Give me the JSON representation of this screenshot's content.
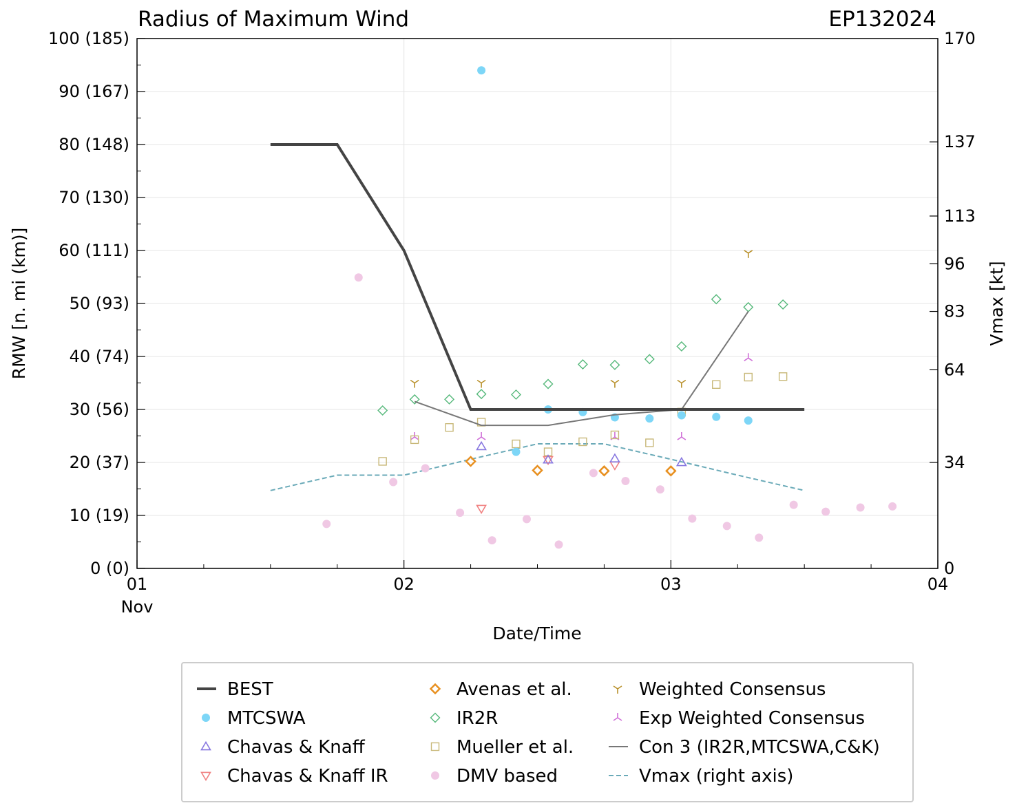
{
  "chart_data": {
    "type": "scatter",
    "title": "Radius of Maximum Wind",
    "storm_id": "EP132024",
    "xlabel": "Date/Time",
    "ylabel": "RMW [n. mi (km)]",
    "y2label": "Vmax [kt]",
    "xlim": [
      0,
      3
    ],
    "ylim": [
      0,
      100
    ],
    "x_ticks": [
      {
        "x": 0,
        "label": "01",
        "sublabel": "Nov"
      },
      {
        "x": 1,
        "label": "02",
        "sublabel": ""
      },
      {
        "x": 2,
        "label": "03",
        "sublabel": ""
      },
      {
        "x": 3,
        "label": "04",
        "sublabel": ""
      }
    ],
    "y_ticks": [
      {
        "y": 0,
        "label": "0 (0)"
      },
      {
        "y": 10,
        "label": "10 (19)"
      },
      {
        "y": 20,
        "label": "20 (37)"
      },
      {
        "y": 30,
        "label": "30 (56)"
      },
      {
        "y": 40,
        "label": "40 (74)"
      },
      {
        "y": 50,
        "label": "50 (93)"
      },
      {
        "y": 60,
        "label": "60 (111)"
      },
      {
        "y": 70,
        "label": "70 (130)"
      },
      {
        "y": 80,
        "label": "80 (148)"
      },
      {
        "y": 90,
        "label": "90 (167)"
      },
      {
        "y": 100,
        "label": "100 (185)"
      }
    ],
    "y2_ticks": [
      {
        "y": 0,
        "label": "0"
      },
      {
        "y": 20,
        "label": "34"
      },
      {
        "y": 37.5,
        "label": "64"
      },
      {
        "y": 48.5,
        "label": "83"
      },
      {
        "y": 57.5,
        "label": "96"
      },
      {
        "y": 66.5,
        "label": "113"
      },
      {
        "y": 80.5,
        "label": "137"
      },
      {
        "y": 100,
        "label": "170"
      }
    ],
    "grid": true,
    "legend_position": "bottom",
    "series": [
      {
        "name": "BEST",
        "kind": "line",
        "color": "#444444",
        "points": [
          [
            0.5,
            80
          ],
          [
            0.75,
            80
          ],
          [
            1.0,
            60
          ],
          [
            1.25,
            30
          ],
          [
            1.5,
            30
          ],
          [
            1.75,
            30
          ],
          [
            2.0,
            30
          ],
          [
            2.5,
            30
          ]
        ]
      },
      {
        "name": "MTCSWA",
        "kind": "circle",
        "color": "#7dd6f7",
        "points": [
          [
            1.29,
            94
          ],
          [
            1.42,
            22
          ],
          [
            1.54,
            30
          ],
          [
            1.67,
            29.5
          ],
          [
            1.79,
            28.5
          ],
          [
            1.92,
            28.3
          ],
          [
            2.04,
            28.9
          ],
          [
            2.17,
            28.6
          ],
          [
            2.29,
            27.9
          ]
        ]
      },
      {
        "name": "Chavas & Knaff",
        "kind": "triangle-up",
        "color": "#8878e0",
        "points": [
          [
            1.29,
            23
          ],
          [
            1.54,
            20.5
          ],
          [
            1.79,
            20.7
          ],
          [
            2.04,
            20
          ]
        ]
      },
      {
        "name": "Chavas & Knaff IR",
        "kind": "triangle-down",
        "color": "#f08080",
        "points": [
          [
            1.29,
            11.3
          ],
          [
            1.54,
            20.5
          ],
          [
            1.79,
            19.5
          ]
        ]
      },
      {
        "name": "Avenas et al.",
        "kind": "diamond",
        "color": "#e89020",
        "points": [
          [
            1.25,
            20.2
          ],
          [
            1.5,
            18.5
          ],
          [
            1.75,
            18.4
          ],
          [
            2.0,
            18.4
          ]
        ]
      },
      {
        "name": "IR2R",
        "kind": "diamond-open",
        "color": "#55b87a",
        "points": [
          [
            0.92,
            29.8
          ],
          [
            1.04,
            31.9
          ],
          [
            1.17,
            31.9
          ],
          [
            1.29,
            32.9
          ],
          [
            1.42,
            32.8
          ],
          [
            1.54,
            34.8
          ],
          [
            1.67,
            38.5
          ],
          [
            1.79,
            38.4
          ],
          [
            1.92,
            39.5
          ],
          [
            2.04,
            41.9
          ],
          [
            2.17,
            50.8
          ],
          [
            2.29,
            49.3
          ],
          [
            2.42,
            49.8
          ]
        ]
      },
      {
        "name": "Mueller et al.",
        "kind": "square-open",
        "color": "#c8b878",
        "points": [
          [
            0.92,
            20.2
          ],
          [
            1.04,
            24.3
          ],
          [
            1.17,
            26.6
          ],
          [
            1.29,
            27.6
          ],
          [
            1.42,
            23.5
          ],
          [
            1.54,
            22
          ],
          [
            1.67,
            23.9
          ],
          [
            1.79,
            25.2
          ],
          [
            1.92,
            23.7
          ],
          [
            2.04,
            29.5
          ],
          [
            2.17,
            34.7
          ],
          [
            2.29,
            36.1
          ],
          [
            2.42,
            36.2
          ]
        ]
      },
      {
        "name": "DMV based",
        "kind": "circle",
        "color": "#f0c8e4",
        "points": [
          [
            0.71,
            8.4
          ],
          [
            0.83,
            54.9
          ],
          [
            0.96,
            16.3
          ],
          [
            1.08,
            18.9
          ],
          [
            1.21,
            10.5
          ],
          [
            1.33,
            5.3
          ],
          [
            1.46,
            9.3
          ],
          [
            1.58,
            4.5
          ],
          [
            1.71,
            18
          ],
          [
            1.83,
            16.5
          ],
          [
            1.96,
            14.9
          ],
          [
            2.08,
            9.4
          ],
          [
            2.21,
            8
          ],
          [
            2.33,
            5.8
          ],
          [
            2.46,
            12
          ],
          [
            2.58,
            10.7
          ],
          [
            2.71,
            11.5
          ],
          [
            2.83,
            11.7
          ]
        ]
      },
      {
        "name": "Weighted Consensus",
        "kind": "tri-down",
        "color": "#b8902a",
        "points": [
          [
            1.04,
            35
          ],
          [
            1.29,
            35
          ],
          [
            1.79,
            35
          ],
          [
            2.04,
            35
          ],
          [
            2.29,
            59.5
          ]
        ]
      },
      {
        "name": "Exp Weighted Consensus",
        "kind": "tri-up",
        "color": "#d070d8",
        "points": [
          [
            1.04,
            24.8
          ],
          [
            1.29,
            24.8
          ],
          [
            1.79,
            24.8
          ],
          [
            2.04,
            24.8
          ],
          [
            2.29,
            39.7
          ]
        ]
      },
      {
        "name": "Con 3 (IR2R,MTCSWA,C&K)",
        "kind": "line",
        "color": "#777777",
        "points": [
          [
            1.04,
            31.5
          ],
          [
            1.29,
            27
          ],
          [
            1.54,
            27
          ],
          [
            1.79,
            29
          ],
          [
            2.04,
            30
          ],
          [
            2.29,
            48.5
          ]
        ]
      },
      {
        "name": "Vmax (right axis)",
        "kind": "dashed-line",
        "color": "#6aaab8",
        "points": [
          [
            0.5,
            14.7
          ],
          [
            0.75,
            17.6
          ],
          [
            1.0,
            17.6
          ],
          [
            1.25,
            20.6
          ],
          [
            1.5,
            23.5
          ],
          [
            1.75,
            23.5
          ],
          [
            2.0,
            20.6
          ],
          [
            2.25,
            17.6
          ],
          [
            2.5,
            14.7
          ]
        ]
      }
    ],
    "legend": [
      "BEST",
      "MTCSWA",
      "Chavas & Knaff",
      "Chavas & Knaff IR",
      "Avenas et al.",
      "IR2R",
      "Mueller et al.",
      "DMV based",
      "Weighted Consensus",
      "Exp Weighted Consensus",
      "Con 3 (IR2R,MTCSWA,C&K)",
      "Vmax (right axis)"
    ]
  }
}
